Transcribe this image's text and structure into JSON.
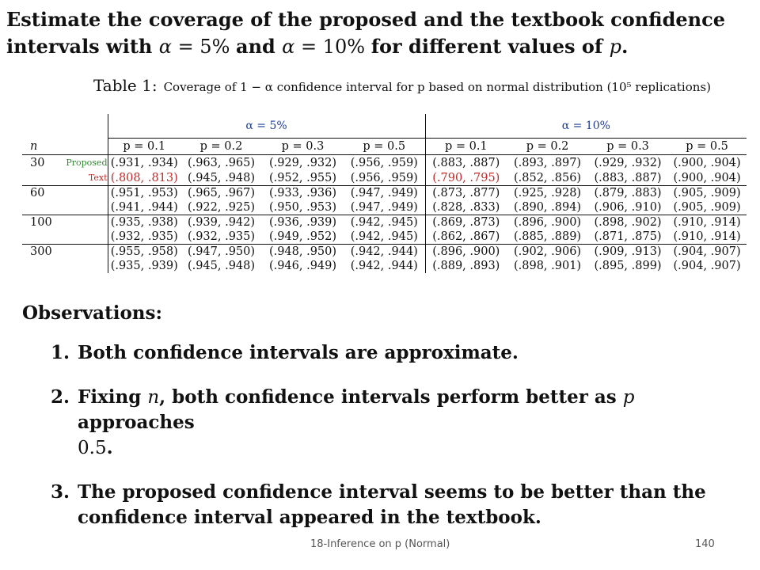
{
  "heading": {
    "line1": "Estimate the coverage of the proposed and the textbook confidence",
    "line2_a": "intervals with ",
    "alpha_sym": "α",
    "eq1": " = 5% ",
    "and": "and ",
    "eq2": " = 10% ",
    "line2_b": "for different values of ",
    "p": "p",
    "period": "."
  },
  "caption": {
    "label": "Table 1:",
    "text": "Coverage of 1 − α confidence interval for p based on normal distribution (10⁵ replications)"
  },
  "table": {
    "group1": "α = 5%",
    "group2": "α = 10%",
    "n_header": "n",
    "p_headers": [
      "p = 0.1",
      "p = 0.2",
      "p = 0.3",
      "p = 0.5",
      "p = 0.1",
      "p = 0.2",
      "p = 0.3",
      "p = 0.5"
    ],
    "proposed_label": "Proposed",
    "text_label": "Text",
    "rows": [
      {
        "n": "30",
        "proposed": [
          "(.931, .934)",
          "(.963, .965)",
          "(.929, .932)",
          "(.956, .959)",
          "(.883, .887)",
          "(.893, .897)",
          "(.929, .932)",
          "(.900, .904)"
        ],
        "text": [
          "(.808, .813)",
          "(.945, .948)",
          "(.952, .955)",
          "(.956, .959)",
          "(.790, .795)",
          "(.852, .856)",
          "(.883, .887)",
          "(.900, .904)"
        ]
      },
      {
        "n": "60",
        "proposed": [
          "(.951, .953)",
          "(.965, .967)",
          "(.933, .936)",
          "(.947, .949)",
          "(.873, .877)",
          "(.925, .928)",
          "(.879, .883)",
          "(.905, .909)"
        ],
        "text": [
          "(.941, .944)",
          "(.922, .925)",
          "(.950, .953)",
          "(.947, .949)",
          "(.828, .833)",
          "(.890, .894)",
          "(.906, .910)",
          "(.905, .909)"
        ]
      },
      {
        "n": "100",
        "proposed": [
          "(.935, .938)",
          "(.939, .942)",
          "(.936, .939)",
          "(.942, .945)",
          "(.869, .873)",
          "(.896, .900)",
          "(.898, .902)",
          "(.910, .914)"
        ],
        "text": [
          "(.932, .935)",
          "(.932, .935)",
          "(.949, .952)",
          "(.942, .945)",
          "(.862, .867)",
          "(.885, .889)",
          "(.871, .875)",
          "(.910, .914)"
        ]
      },
      {
        "n": "300",
        "proposed": [
          "(.955, .958)",
          "(.947, .950)",
          "(.948, .950)",
          "(.942, .944)",
          "(.896, .900)",
          "(.902, .906)",
          "(.909, .913)",
          "(.904, .907)"
        ],
        "text": [
          "(.935, .939)",
          "(.945, .948)",
          "(.946, .949)",
          "(.942, .944)",
          "(.889, .893)",
          "(.898, .901)",
          "(.895, .899)",
          "(.904, .907)"
        ]
      }
    ]
  },
  "observations": {
    "title": "Observations:",
    "items": [
      {
        "num": "1.",
        "text": "Both confidence intervals are approximate."
      },
      {
        "num": "2.",
        "a": "Fixing ",
        "n": "n",
        "b": ", both confidence intervals perform better as ",
        "p": "p",
        "c": " approaches",
        "d": "0.5",
        "e": "."
      },
      {
        "num": "3.",
        "line1": "The proposed confidence interval seems to be better than the",
        "line2": "confidence interval appeared in the textbook."
      }
    ]
  },
  "footer": {
    "center": "18-Inference on p (Normal)",
    "page": "140"
  },
  "colors": {
    "header_blue": "#1d3d9b",
    "proposed_green": "#2d8a2d",
    "text_red": "#c62828"
  }
}
